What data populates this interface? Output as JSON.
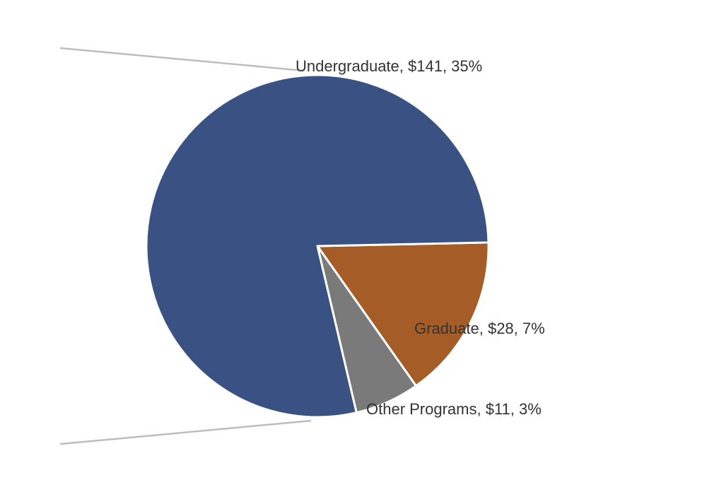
{
  "chart_data": {
    "type": "pie",
    "title": "",
    "categories": [
      "Undergraduate",
      "Graduate",
      "Other Programs"
    ],
    "values": [
      141,
      28,
      11
    ],
    "percent_labels": [
      "35%",
      "7%",
      "3%"
    ],
    "value_labels": [
      "$141",
      "$28",
      "$11"
    ],
    "labels": [
      "Undergraduate, $141, 35%",
      "Graduate, $28, 7%",
      "Other Programs, $11, 3%"
    ],
    "colors": [
      "#3a5283",
      "#a65c26",
      "#7a7a7a"
    ],
    "legend": "none",
    "connector_color": "#bdbdbd"
  }
}
